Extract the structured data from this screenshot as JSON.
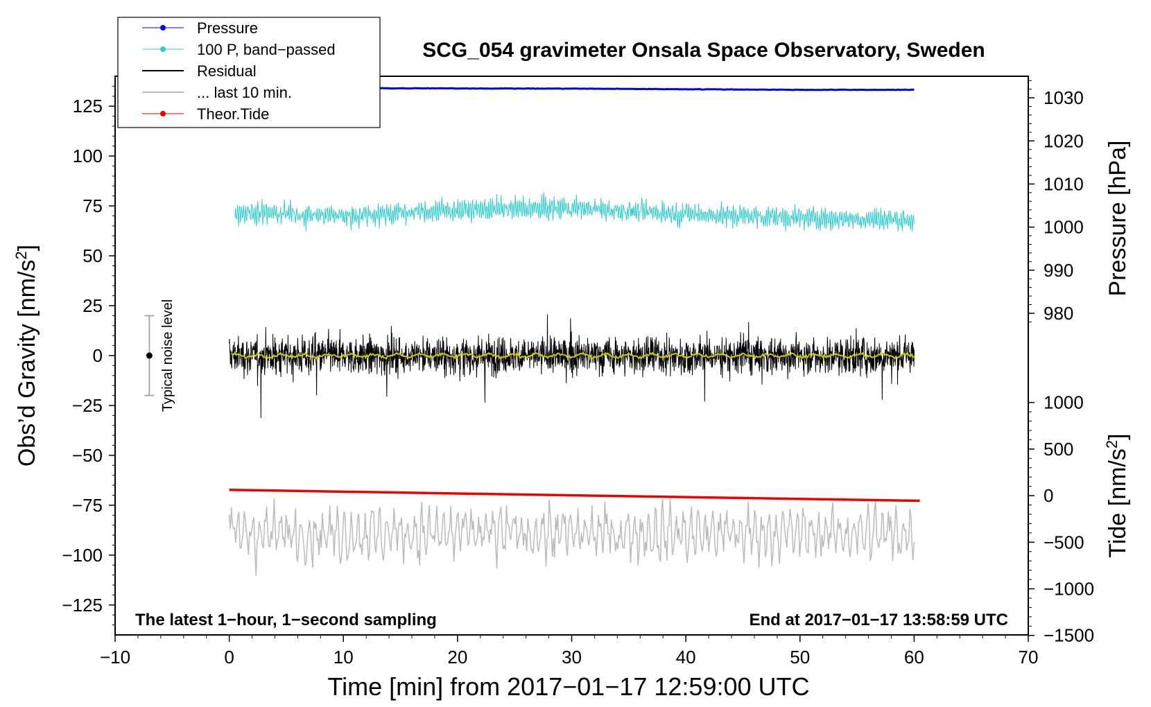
{
  "chart_data": {
    "type": "line",
    "title": "SCG_054 gravimeter Onsala Space Observatory, Sweden",
    "xlabel": "Time [min] from 2017−01−17 12:59:00 UTC",
    "ylabel_left": "Obs’d Gravity [nm/s",
    "ylabel_sup": "2",
    "ylabel_close": "]",
    "ylabel_right_pressure": "Pressure [hPa]",
    "ylabel_right_tide": "Tide [nm/s",
    "xlim": [
      -10,
      70
    ],
    "ylim": [
      -140,
      140
    ],
    "x_ticks": [
      "−10",
      "0",
      "10",
      "20",
      "30",
      "40",
      "50",
      "60",
      "70"
    ],
    "x_tick_values": [
      -10,
      0,
      10,
      20,
      30,
      40,
      50,
      60,
      70
    ],
    "y_ticks": [
      "125",
      "100",
      "75",
      "50",
      "25",
      "0",
      "−25",
      "−50",
      "−75",
      "−100",
      "−125"
    ],
    "y_tick_values": [
      125,
      100,
      75,
      50,
      25,
      0,
      -25,
      -50,
      -75,
      -100,
      -125
    ],
    "pressure_axis": {
      "ticks": [
        "1030",
        "1020",
        "1010",
        "1000",
        "990",
        "980"
      ],
      "values": [
        1030,
        1020,
        1010,
        1000,
        990,
        980
      ],
      "gravity_at_1030": 129.2,
      "gravity_per_hpa": 2.16
    },
    "tide_axis": {
      "ticks": [
        "1000",
        "500",
        "0",
        "−500",
        "−1000",
        "−1500"
      ],
      "values": [
        1000,
        500,
        0,
        -500,
        -1000,
        -1500
      ],
      "gravity_at_zero": -70.2,
      "gravity_per_unit": 0.0467
    },
    "series": [
      {
        "name": "Pressure",
        "color": "#0000ee",
        "x": [
          0,
          10,
          20,
          30,
          40,
          50,
          60
        ],
        "values": [
          134.0,
          134.0,
          133.9,
          133.8,
          133.5,
          133.2,
          133.2
        ]
      },
      {
        "name": "100 P, band−passed",
        "color": "#33cccc",
        "x": [
          0,
          10,
          20,
          30,
          40,
          50,
          60
        ],
        "values": [
          72,
          70,
          73,
          74,
          71,
          69,
          68
        ]
      },
      {
        "name": "Residual",
        "color": "#000000",
        "x": [
          0,
          60
        ],
        "values": [
          0,
          0
        ]
      },
      {
        "name": "... last 10 min.",
        "color": "#bbbbbb",
        "x": [
          0,
          60
        ],
        "values": [
          -89,
          -89
        ]
      },
      {
        "name": "Theor.Tide",
        "color": "#ee0000",
        "x": [
          0,
          60.5
        ],
        "values": [
          -67.3,
          -72.8
        ]
      }
    ],
    "noise_bar": {
      "label": "Typical noise level",
      "x": -7,
      "center": 0,
      "half_range": 20
    },
    "annotation_left": "The latest 1−hour, 1−second sampling",
    "annotation_right": "End at 2017−01−17 13:58:59 UTC",
    "legend_position": "top-left"
  }
}
